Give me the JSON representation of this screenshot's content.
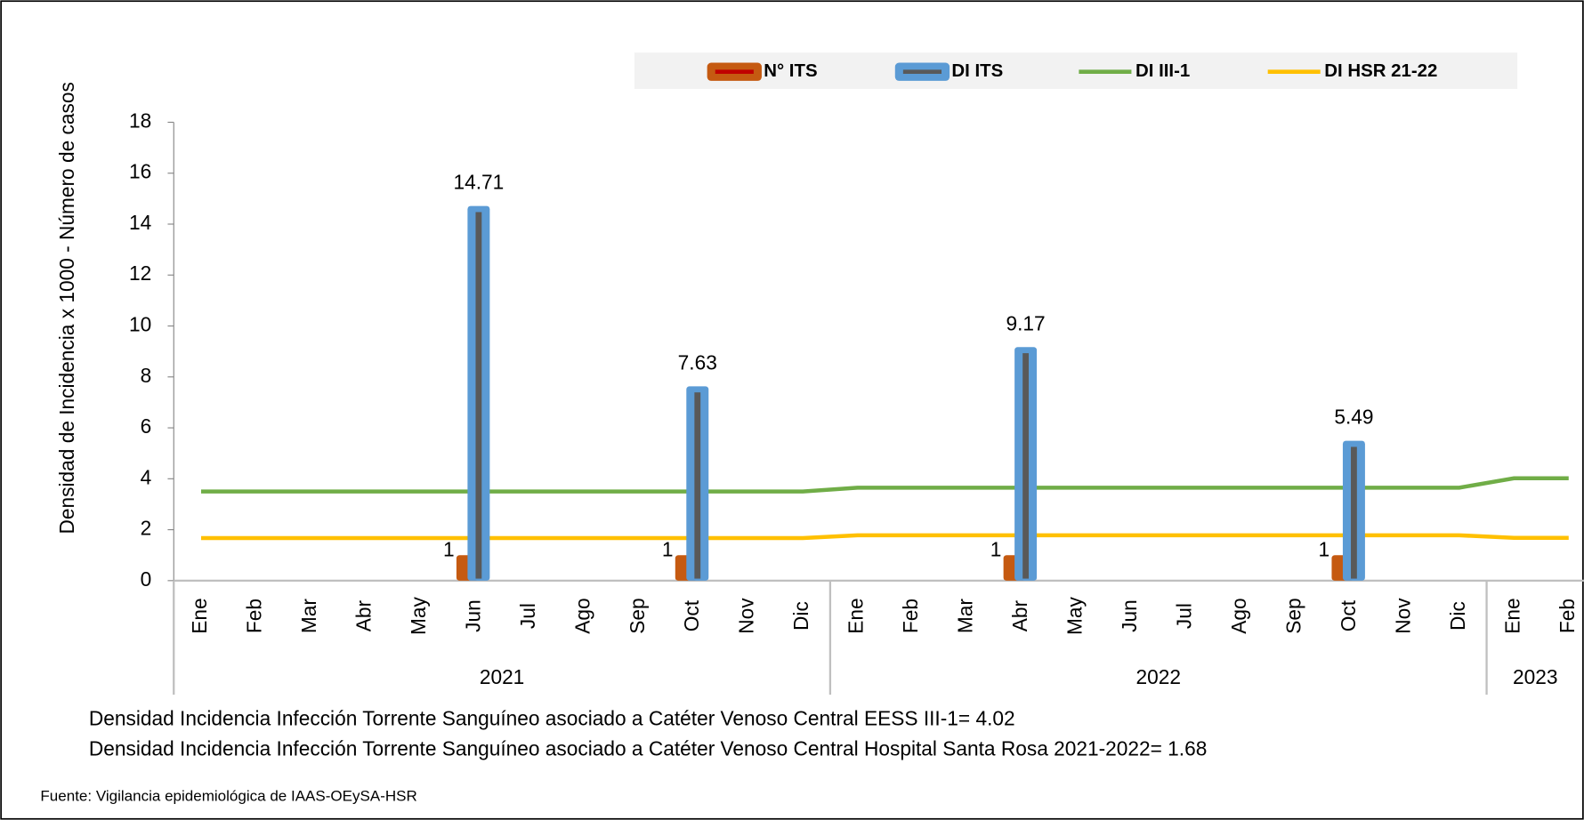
{
  "chart_data": {
    "type": "bar",
    "y_label": "Densidad de Incidencia x 1000 - Número de casos",
    "categories": [
      "Ene",
      "Feb",
      "Mar",
      "Abr",
      "May",
      "Jun",
      "Jul",
      "Ago",
      "Sep",
      "Oct",
      "Nov",
      "Dic",
      "Ene",
      "Feb",
      "Mar",
      "Abr",
      "May",
      "Jun",
      "Jul",
      "Ago",
      "Sep",
      "Oct",
      "Nov",
      "Dic",
      "Ene",
      "Feb"
    ],
    "groups": [
      {
        "label": "2021",
        "span": 12
      },
      {
        "label": "2022",
        "span": 12
      },
      {
        "label": "2023",
        "span": 2
      }
    ],
    "series": [
      {
        "name": "N° ITS",
        "type": "bar",
        "color": "#C55A11",
        "values": [
          null,
          null,
          null,
          null,
          null,
          1,
          null,
          null,
          null,
          1,
          null,
          null,
          null,
          null,
          null,
          1,
          null,
          null,
          null,
          null,
          null,
          1,
          null,
          null,
          null,
          null
        ]
      },
      {
        "name": "DI ITS",
        "type": "bar",
        "color": "#5B9BD5",
        "values": [
          null,
          null,
          null,
          null,
          null,
          14.71,
          null,
          null,
          null,
          7.63,
          null,
          null,
          null,
          null,
          null,
          9.17,
          null,
          null,
          null,
          null,
          null,
          5.49,
          null,
          null,
          null,
          null
        ]
      },
      {
        "name": "DI III-1",
        "type": "line",
        "color": "#70AD47",
        "values": [
          3.5,
          3.5,
          3.5,
          3.5,
          3.5,
          3.5,
          3.5,
          3.5,
          3.5,
          3.5,
          3.5,
          3.5,
          3.65,
          3.65,
          3.65,
          3.65,
          3.65,
          3.65,
          3.65,
          3.65,
          3.65,
          3.65,
          3.65,
          3.65,
          4.02,
          4.02
        ]
      },
      {
        "name": "DI HSR 21-22",
        "type": "line",
        "color": "#FFC000",
        "values": [
          1.67,
          1.67,
          1.67,
          1.67,
          1.67,
          1.67,
          1.67,
          1.67,
          1.67,
          1.67,
          1.67,
          1.67,
          1.78,
          1.78,
          1.78,
          1.78,
          1.78,
          1.78,
          1.78,
          1.78,
          1.78,
          1.78,
          1.78,
          1.78,
          1.68,
          1.68
        ]
      }
    ],
    "ylim": [
      0,
      18
    ],
    "yticks": [
      0,
      2,
      4,
      6,
      8,
      10,
      12,
      14,
      16,
      18
    ],
    "legend": "top",
    "notes": [
      "Densidad Incidencia Infección Torrente Sanguíneo asociado a Catéter Venoso Central EESS III-1= 4.02",
      "Densidad Incidencia Infección Torrente Sanguíneo asociado a Catéter Venoso Central Hospital Santa Rosa 2021-2022= 1.68"
    ],
    "source": "Fuente: Vigilancia epidemiológica de IAAS-OEySA-HSR"
  }
}
